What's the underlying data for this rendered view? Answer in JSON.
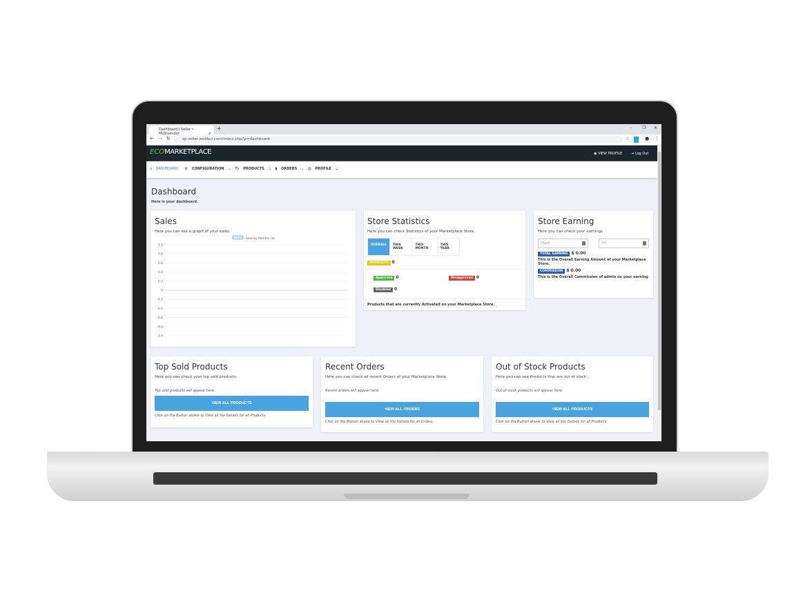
{
  "browser": {
    "tab_title": "Dashboard | Seller • Multivendor",
    "url": "sp-seller.webkul.com/index.php?p=dashboard"
  },
  "navbar": {
    "logo_eco": "ECO",
    "logo_market": "MARKETPLACE",
    "view_profile": "VIEW PROFILE",
    "logout": "Log Out"
  },
  "menu": [
    {
      "label": "DASHBOARD",
      "icon": "home-icon"
    },
    {
      "label": "CONFIGURATION",
      "icon": "gear-icon"
    },
    {
      "label": "PRODUCTS",
      "icon": "tag-icon"
    },
    {
      "label": "ORDERS",
      "icon": "clipboard-icon"
    },
    {
      "label": "PROFILE",
      "icon": "id-card-icon"
    }
  ],
  "page": {
    "title": "Dashboard",
    "subtitle": "Here is your dashboard."
  },
  "sales": {
    "title": "Sales",
    "subtitle": "Here you can see a graph of your sales."
  },
  "chart_data": {
    "type": "bar",
    "title": "",
    "series": [
      {
        "name": "Sale by Months ($)",
        "values": []
      }
    ],
    "categories": [],
    "ylim": [
      -1.0,
      1.0
    ],
    "yticks": [
      "1.0",
      "0.8",
      "0.6",
      "0.4",
      "0.2",
      "0",
      "-0.2",
      "-0.4",
      "-0.6",
      "-0.8",
      "-1.0"
    ],
    "grid": true,
    "legend": "top",
    "color": "#cfe6f7"
  },
  "stats": {
    "title": "Store Statistics",
    "subtitle": "Here you can check Statistics of your Marketplace Store.",
    "tabs": [
      "OVERALL",
      "THIS WEEK",
      "THIS MONTH",
      "THIS YEAR"
    ],
    "products_label": "PRODUCTS",
    "products": "0",
    "approved_label": "Approved",
    "approved": "0",
    "disapproved_label": "Disapproved",
    "disapproved": "0",
    "disabled_label": "Disabled",
    "disabled": "0",
    "footer": "Products that are currently Activated on your Marketplace Store."
  },
  "earning": {
    "title": "Store Earning",
    "subtitle": "Here you can check your earnings",
    "from": "FROM",
    "to": "TO",
    "total_label": "TOTAL EARNING",
    "total": "$ 0.00",
    "total_desc": "This is the Overall Earning Amount of your Marketplace Store.",
    "commission_label": "COMMISSION",
    "commission": "$ 0.00",
    "commission_desc": "This is the Overall Commission of admin on your earning"
  },
  "cards": [
    {
      "title": "Top Sold Products",
      "subtitle": "Here you can check your top sold products.",
      "empty": "Top sold products will appear here.",
      "button": "VIEW ALL PRODUCTS",
      "note": "Click on the Button above to View all the Details for all Products."
    },
    {
      "title": "Recent Orders",
      "subtitle": "Here you can check all recent Orders of your Marketplace Store.",
      "empty": "Recent orders will appear here.",
      "button": "VIEW ALL ORDERS",
      "note": "Click on the Button above to View all the Details for all Orders."
    },
    {
      "title": "Out of Stock Products",
      "subtitle": "Here you can see Products that are out of stock .",
      "empty": "Out of stock products will appear here.",
      "button": "VIEW ALL PRODUCTS",
      "note": "Click on the Button above to View all the Details for all Products."
    }
  ],
  "colors": {
    "accent": "#4aa3df",
    "navbar": "#1b262c",
    "products": "#f5c400",
    "approved": "#4cb74c",
    "disapproved": "#d9413a",
    "disabled": "#666666",
    "earning": "#2a5db0"
  }
}
